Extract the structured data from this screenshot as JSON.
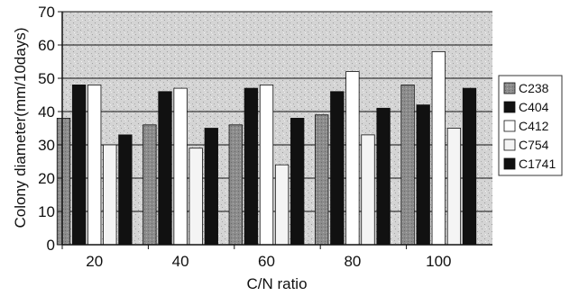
{
  "chart_data": {
    "type": "bar",
    "categories": [
      "20",
      "40",
      "60",
      "80",
      "100"
    ],
    "series": [
      {
        "name": "C238",
        "values": [
          38,
          36,
          36,
          39,
          48
        ],
        "color": "#8c8c8c"
      },
      {
        "name": "C404",
        "values": [
          48,
          46,
          47,
          46,
          42
        ],
        "color": "#111111"
      },
      {
        "name": "C412",
        "values": [
          48,
          47,
          48,
          52,
          58
        ],
        "color": "#ffffff"
      },
      {
        "name": "C754",
        "values": [
          30,
          29,
          24,
          33,
          35
        ],
        "color": "#f4f4f4"
      },
      {
        "name": "C1741",
        "values": [
          33,
          35,
          38,
          41,
          47
        ],
        "color": "#111111"
      }
    ],
    "xlabel": "C/N ratio",
    "ylabel": "Colony diameter(mm/10days)",
    "ylim": [
      0,
      70
    ],
    "yticks": [
      0,
      10,
      20,
      30,
      40,
      50,
      60,
      70
    ],
    "grid": true,
    "legend_position": "right",
    "plot_background": "#d6d6d6"
  }
}
